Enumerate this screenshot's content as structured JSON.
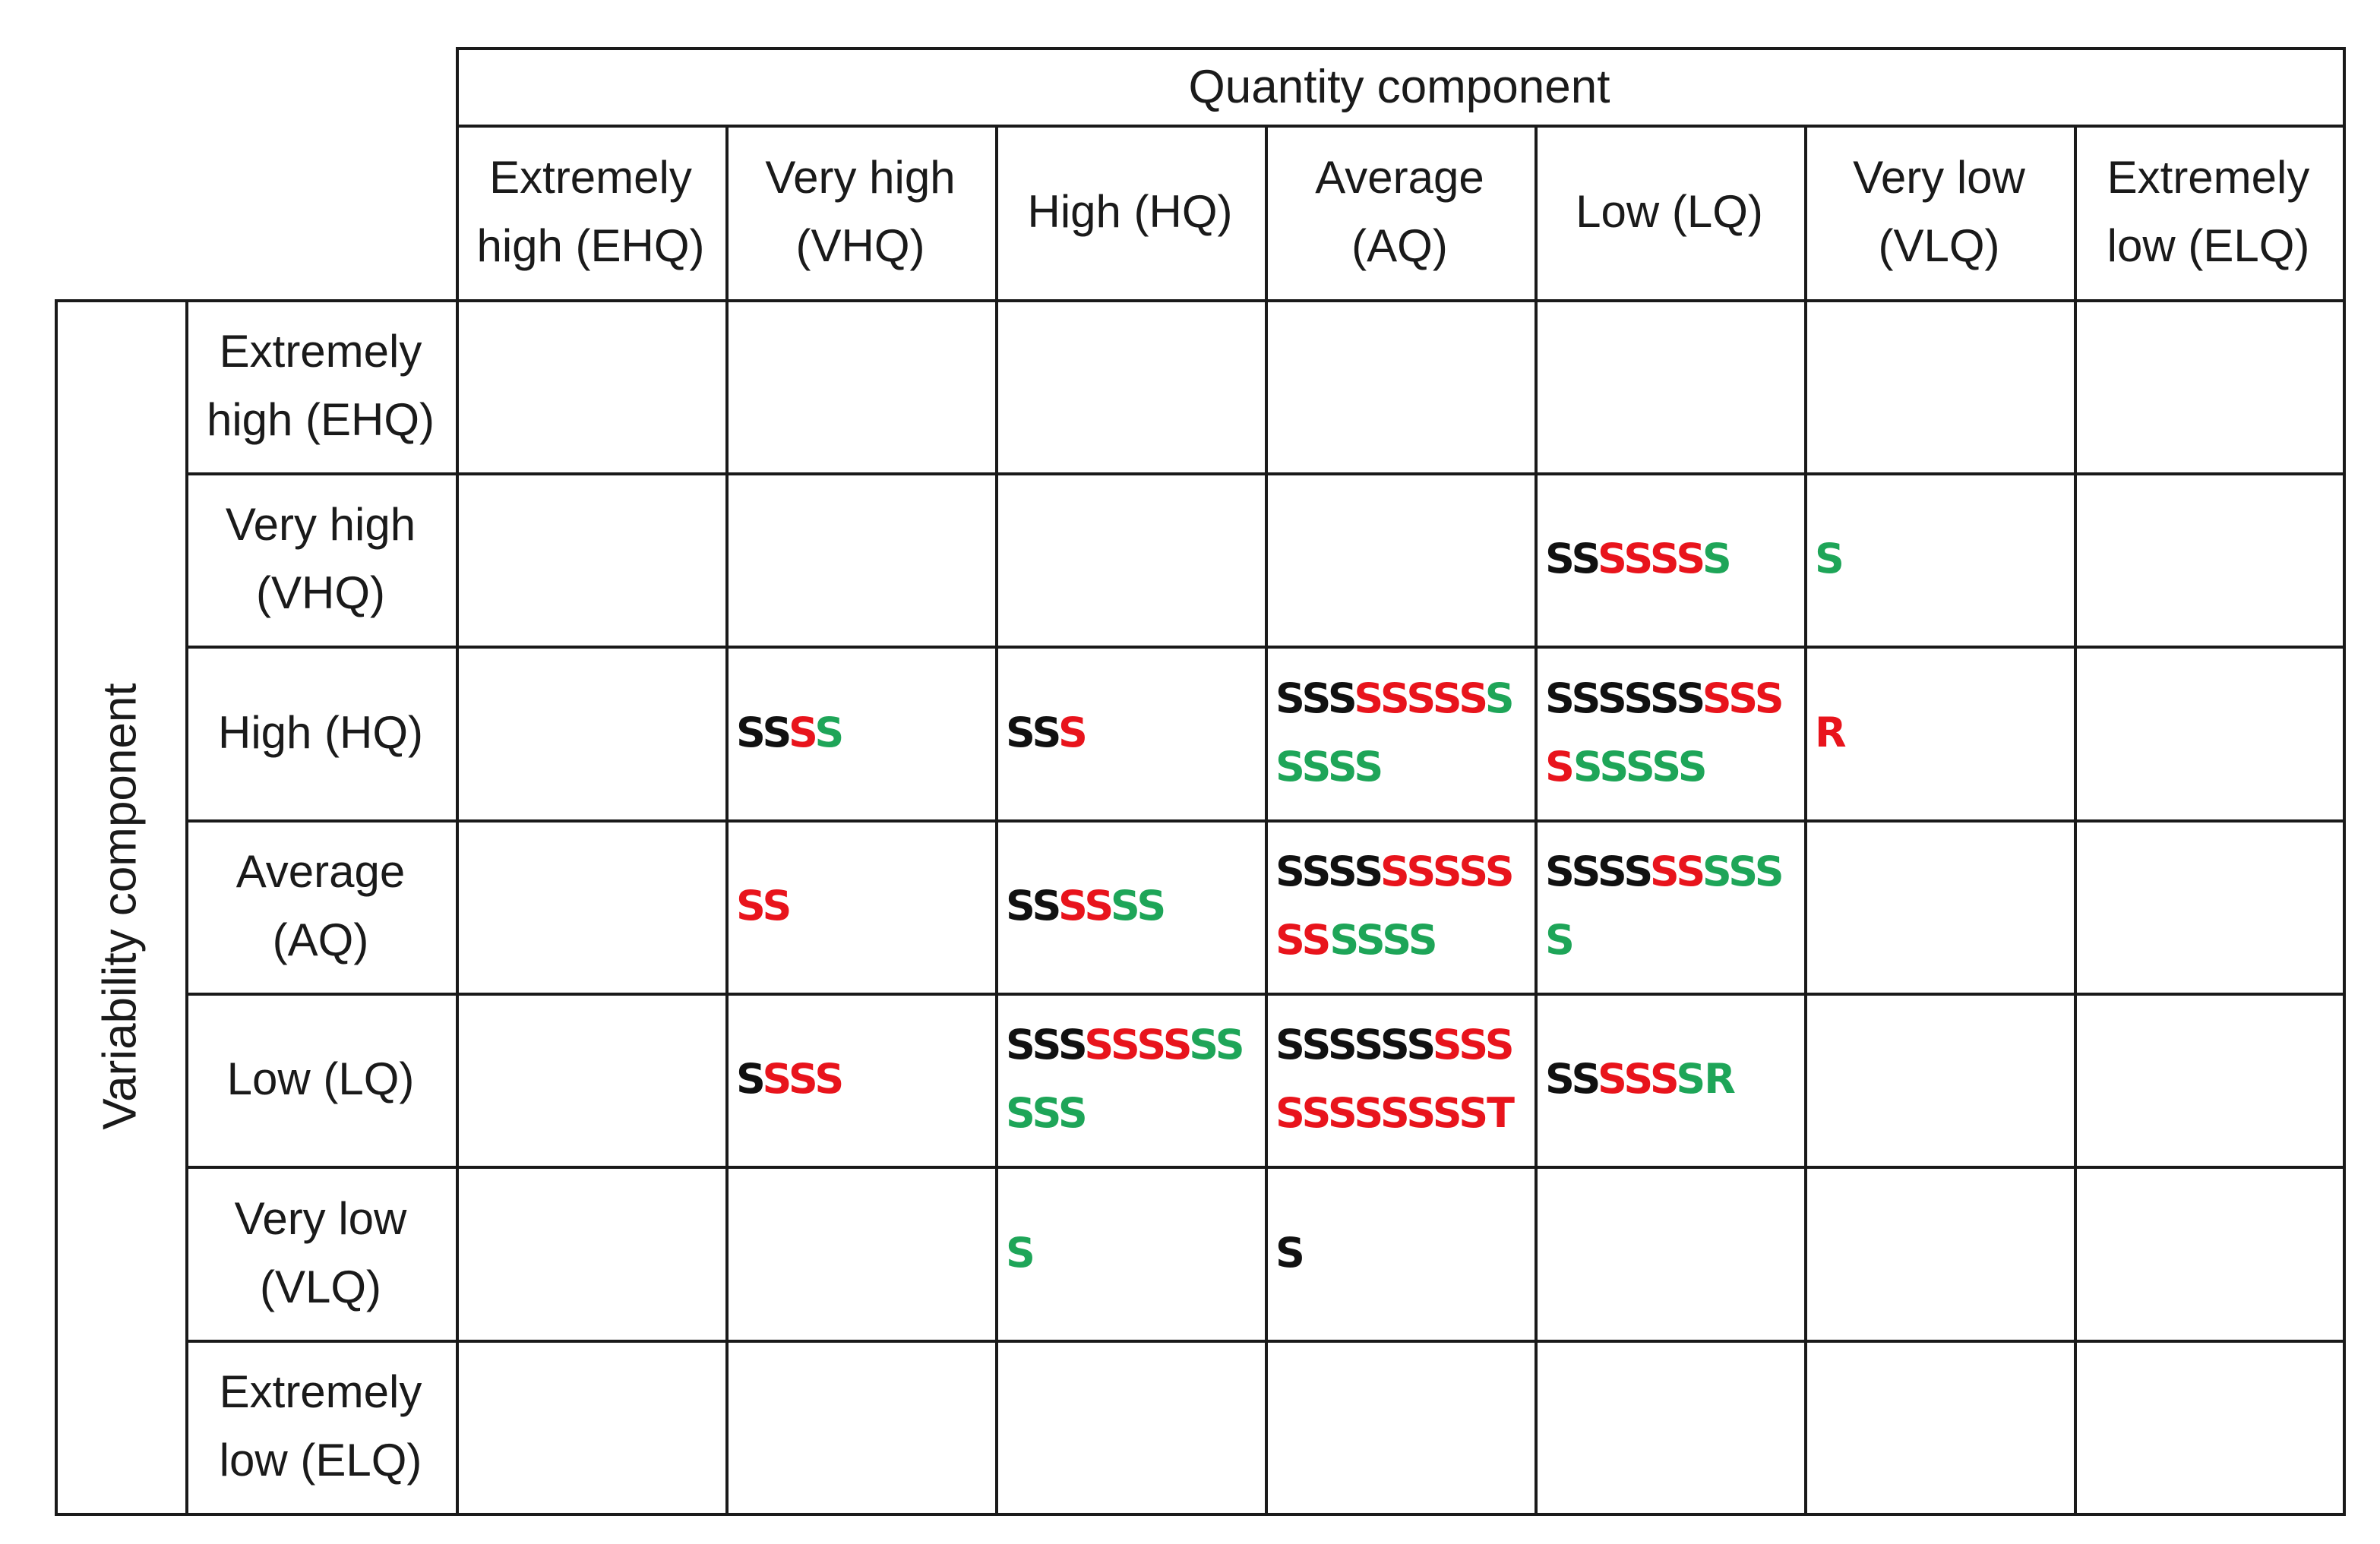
{
  "colors": {
    "black": "#111111",
    "red": "#e8141c",
    "green": "#1ea558"
  },
  "quantity_title": "Quantity component",
  "variability_title": "Variability component",
  "quantity_columns": [
    "Extremely\nhigh (EHQ)",
    "Very high\n(VHQ)",
    "High (HQ)",
    "Average\n(AQ)",
    "Low (LQ)",
    "Very low\n(VLQ)",
    "Extremely\nlow (ELQ)"
  ],
  "variability_rows": [
    {
      "label": "Extremely\nhigh (EHQ)",
      "cells": [
        [],
        [],
        [],
        [],
        [],
        [],
        []
      ]
    },
    {
      "label": "Very high\n(VHQ)",
      "cells": [
        [],
        [],
        [],
        [],
        [
          {
            "t": "SS",
            "c": "black"
          },
          {
            "t": "SSSS",
            "c": "red"
          },
          {
            "t": "S",
            "c": "green"
          }
        ],
        [
          {
            "t": "S",
            "c": "green"
          }
        ],
        []
      ]
    },
    {
      "label": "High (HQ)",
      "cells": [
        [],
        [
          {
            "t": "SS",
            "c": "black"
          },
          {
            "t": "S",
            "c": "red"
          },
          {
            "t": "S",
            "c": "green"
          }
        ],
        [
          {
            "t": "SS",
            "c": "black"
          },
          {
            "t": "S",
            "c": "red"
          }
        ],
        [
          {
            "t": "SSS",
            "c": "black"
          },
          {
            "t": "SSSSS",
            "c": "red"
          },
          {
            "t": "SSSSS",
            "c": "green"
          }
        ],
        [
          {
            "t": "SSSSSS",
            "c": "black"
          },
          {
            "t": "SSSS",
            "c": "red"
          },
          {
            "t": "SSSSS",
            "c": "green"
          }
        ],
        [
          {
            "t": "R",
            "c": "red"
          }
        ],
        []
      ]
    },
    {
      "label": "Average\n(AQ)",
      "cells": [
        [],
        [
          {
            "t": "SS",
            "c": "red"
          }
        ],
        [
          {
            "t": "SS",
            "c": "black"
          },
          {
            "t": "SS",
            "c": "red"
          },
          {
            "t": "SS",
            "c": "green"
          }
        ],
        [
          {
            "t": "SSSS",
            "c": "black"
          },
          {
            "t": "SSSSSSS",
            "c": "red"
          },
          {
            "t": "SSSS",
            "c": "green"
          }
        ],
        [
          {
            "t": "SSSS",
            "c": "black"
          },
          {
            "t": "SS",
            "c": "red"
          },
          {
            "t": "SSSS",
            "c": "green"
          }
        ],
        [],
        []
      ]
    },
    {
      "label": "Low (LQ)",
      "cells": [
        [],
        [
          {
            "t": "S",
            "c": "black"
          },
          {
            "t": "SSS",
            "c": "red"
          }
        ],
        [
          {
            "t": "SSS",
            "c": "black"
          },
          {
            "t": "SSSS",
            "c": "red"
          },
          {
            "t": "SSSSS",
            "c": "green"
          }
        ],
        [
          {
            "t": "SSSSSS",
            "c": "black"
          },
          {
            "t": "SSSSSSSSSSS",
            "c": "red"
          },
          {
            "t": "T",
            "c": "red"
          }
        ],
        [
          {
            "t": "SS",
            "c": "black"
          },
          {
            "t": "SSS",
            "c": "red"
          },
          {
            "t": "SR",
            "c": "green"
          }
        ],
        [],
        []
      ]
    },
    {
      "label": "Very low\n(VLQ)",
      "cells": [
        [],
        [],
        [
          {
            "t": "S",
            "c": "green"
          }
        ],
        [
          {
            "t": "S",
            "c": "black"
          }
        ],
        [],
        [],
        []
      ]
    },
    {
      "label": "Extremely\nlow (ELQ)",
      "cells": [
        [],
        [],
        [],
        [],
        [],
        [],
        []
      ]
    }
  ]
}
